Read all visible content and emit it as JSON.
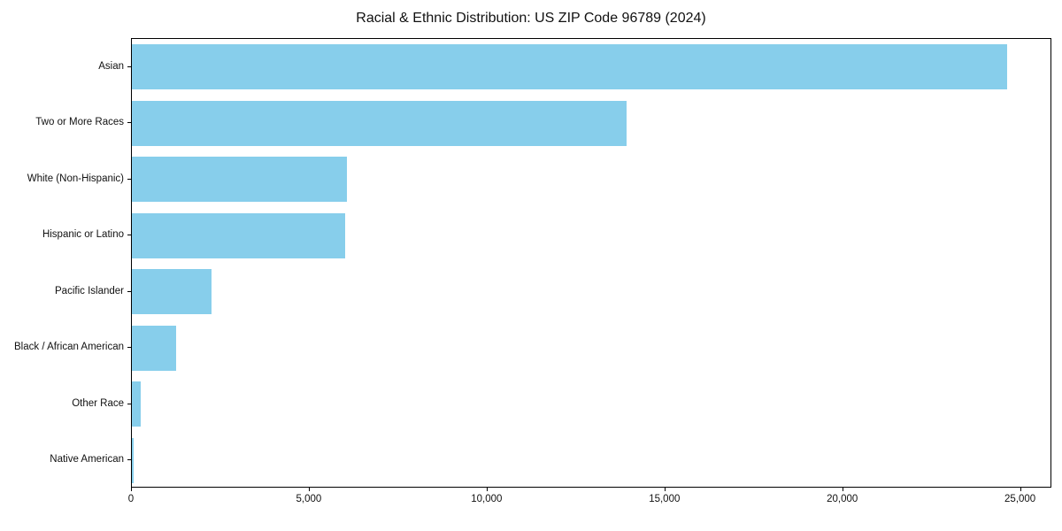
{
  "chart_data": {
    "type": "bar",
    "orientation": "horizontal",
    "title": "Racial & Ethnic Distribution: US ZIP Code 96789 (2024)",
    "categories": [
      "Asian",
      "Two or More Races",
      "White (Non-Hispanic)",
      "Hispanic or Latino",
      "Pacific Islander",
      "Black / African American",
      "Other Race",
      "Native American"
    ],
    "values": [
      24600,
      13900,
      6050,
      6000,
      2250,
      1250,
      250,
      40
    ],
    "bar_color": "#87CEEB",
    "xlabel": "",
    "ylabel": "",
    "xlim": [
      0,
      25880
    ],
    "xticks": [
      0,
      5000,
      10000,
      15000,
      20000,
      25000
    ],
    "xtick_labels": [
      "0",
      "5,000",
      "10,000",
      "15,000",
      "20,000",
      "25,000"
    ],
    "legend": false,
    "grid": false
  }
}
